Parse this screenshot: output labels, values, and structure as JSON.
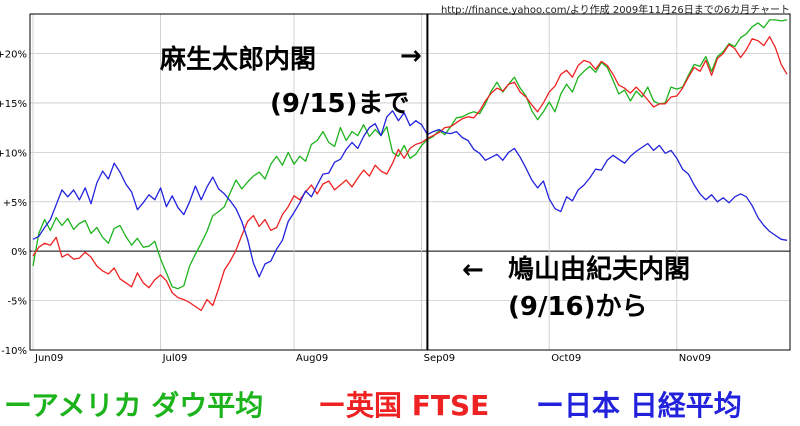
{
  "source_note": "http://finance.yahoo.com/より作成 2009年11月26日までの6カ月チャート",
  "annotations": {
    "aso_line1": "麻生太郎内閣",
    "aso_line2": "(9/15)まで",
    "arrow_right": "→",
    "hatoyama_line1": "鳩山由紀夫内閣",
    "hatoyama_line2": "(9/16)から",
    "arrow_left": "←"
  },
  "chart_data": {
    "type": "line",
    "title": "",
    "xlabel": "",
    "ylabel": "",
    "ylim": [
      -10,
      24
    ],
    "y_ticks": [
      "-10%",
      "-5%",
      "0%",
      "+5%",
      "+10%",
      "+15%",
      "+20%"
    ],
    "y_tick_values": [
      -10,
      -5,
      0,
      5,
      10,
      15,
      20
    ],
    "x_ticks": [
      "Jun09",
      "Jul09",
      "Aug09",
      "Sep09",
      "Oct09",
      "Nov09"
    ],
    "x_tick_values": [
      0,
      22,
      45,
      67,
      89,
      111
    ],
    "grid": true,
    "legend_placement": "bottom",
    "vertical_marker_x": 68,
    "series": [
      {
        "name": "ーアメリカ ダウ平均",
        "color": "#1db31d",
        "values": [
          -1.5,
          1.8,
          3.2,
          2.1,
          3.4,
          2.6,
          3.3,
          2.2,
          2.8,
          3.1,
          1.8,
          2.4,
          1.4,
          0.8,
          2.3,
          2.6,
          1.5,
          0.6,
          1.3,
          0.4,
          0.5,
          1.0,
          -0.8,
          -2.2,
          -3.6,
          -3.8,
          -3.5,
          -1.5,
          -0.3,
          0.8,
          2.0,
          3.6,
          4.0,
          4.5,
          5.9,
          7.2,
          6.3,
          7.0,
          7.6,
          8.0,
          7.3,
          8.8,
          9.6,
          8.7,
          10.0,
          8.8,
          9.6,
          9.1,
          10.8,
          11.2,
          12.1,
          11.0,
          10.6,
          12.5,
          11.2,
          12.1,
          11.7,
          12.8,
          11.6,
          12.3,
          11.7,
          12.6,
          10.0,
          9.6,
          10.7,
          9.4,
          9.8,
          10.7,
          11.3,
          11.6,
          12.2,
          11.8,
          12.6,
          13.5,
          13.6,
          13.9,
          14.1,
          13.9,
          14.9,
          16.2,
          17.1,
          16.1,
          16.9,
          17.6,
          16.5,
          15.7,
          14.2,
          13.3,
          14.1,
          15.1,
          14.1,
          15.9,
          16.9,
          16.1,
          17.6,
          18.2,
          18.7,
          18.1,
          19.1,
          18.6,
          17.3,
          15.9,
          16.3,
          15.2,
          16.2,
          15.6,
          16.6,
          15.2,
          14.9,
          15.0,
          16.6,
          16.4,
          16.6,
          17.8,
          18.9,
          18.7,
          19.7,
          18.2,
          19.7,
          20.2,
          21.0,
          20.7,
          21.6,
          22.0,
          22.7,
          23.1,
          22.6,
          23.4,
          23.4,
          23.3,
          23.4
        ]
      },
      {
        "name": "ー英国 FTSE",
        "color": "#ee2222",
        "values": [
          -0.5,
          0.4,
          0.8,
          0.6,
          1.4,
          -0.6,
          -0.3,
          -0.8,
          -0.7,
          -0.1,
          -0.6,
          -1.5,
          -2.0,
          -2.3,
          -1.7,
          -2.8,
          -3.2,
          -3.6,
          -2.2,
          -3.2,
          -3.7,
          -2.9,
          -2.4,
          -3.0,
          -4.2,
          -4.7,
          -4.9,
          -5.2,
          -5.6,
          -6.0,
          -4.9,
          -5.5,
          -3.8,
          -1.9,
          -1.0,
          0.1,
          1.6,
          3.0,
          3.6,
          2.5,
          3.2,
          2.1,
          2.4,
          3.7,
          4.5,
          5.6,
          5.2,
          6.0,
          6.7,
          5.8,
          6.8,
          7.1,
          6.2,
          6.7,
          7.2,
          6.5,
          7.4,
          8.2,
          7.6,
          8.7,
          8.1,
          7.8,
          8.9,
          10.3,
          9.4,
          10.4,
          10.8,
          11.0,
          11.4,
          11.7,
          12.0,
          12.5,
          12.6,
          13.0,
          13.4,
          13.6,
          13.5,
          14.2,
          15.2,
          16.0,
          16.5,
          16.2,
          16.9,
          17.1,
          16.1,
          15.6,
          14.8,
          14.1,
          15.0,
          16.1,
          16.7,
          17.9,
          18.3,
          17.6,
          18.8,
          19.3,
          19.1,
          18.4,
          19.2,
          18.8,
          17.9,
          16.8,
          16.5,
          16.0,
          16.6,
          16.0,
          15.3,
          14.6,
          14.9,
          14.9,
          15.6,
          15.7,
          16.5,
          17.6,
          18.6,
          18.2,
          19.3,
          17.8,
          19.5,
          20.0,
          20.9,
          20.5,
          19.6,
          20.4,
          21.5,
          21.3,
          20.8,
          21.7,
          20.6,
          18.9,
          17.9
        ]
      },
      {
        "name": "ー日本 日経平均",
        "color": "#2222dd",
        "values": [
          1.2,
          1.5,
          2.4,
          3.2,
          4.7,
          6.2,
          5.5,
          6.2,
          5.2,
          6.4,
          4.8,
          6.9,
          8.1,
          7.3,
          8.9,
          8.0,
          6.8,
          6.0,
          4.2,
          4.9,
          5.7,
          5.2,
          6.4,
          4.5,
          5.6,
          4.4,
          3.7,
          5.0,
          6.6,
          5.2,
          6.5,
          7.5,
          6.3,
          5.8,
          5.1,
          4.3,
          3.0,
          1.2,
          -1.2,
          -2.6,
          -1.3,
          -1.0,
          0.2,
          1.1,
          3.0,
          3.9,
          4.9,
          6.1,
          5.5,
          6.7,
          7.8,
          7.9,
          9.0,
          9.3,
          10.3,
          11.0,
          10.4,
          11.6,
          12.5,
          12.9,
          11.7,
          13.6,
          14.2,
          13.2,
          14.0,
          12.7,
          13.2,
          12.8,
          11.8,
          12.1,
          12.3,
          12.0,
          11.9,
          12.1,
          11.5,
          11.2,
          10.3,
          9.9,
          9.2,
          9.5,
          9.8,
          9.2,
          10.0,
          10.4,
          9.5,
          8.4,
          7.2,
          6.4,
          7.1,
          5.3,
          4.3,
          4.0,
          5.5,
          5.1,
          6.2,
          6.7,
          7.4,
          8.3,
          8.2,
          9.2,
          9.7,
          9.3,
          8.9,
          9.6,
          10.1,
          10.5,
          10.9,
          10.2,
          10.7,
          9.9,
          10.2,
          9.4,
          8.3,
          7.8,
          6.7,
          5.8,
          5.2,
          5.7,
          5.0,
          5.4,
          4.9,
          5.5,
          5.8,
          5.5,
          4.6,
          3.4,
          2.6,
          2.0,
          1.6,
          1.2,
          1.1
        ]
      }
    ]
  },
  "legend": [
    {
      "label": "ーアメリカ ダウ平均",
      "color": "#1db31d"
    },
    {
      "label": "ー英国 FTSE",
      "color": "#ee2222"
    },
    {
      "label": "ー日本 日経平均",
      "color": "#2222dd"
    }
  ]
}
